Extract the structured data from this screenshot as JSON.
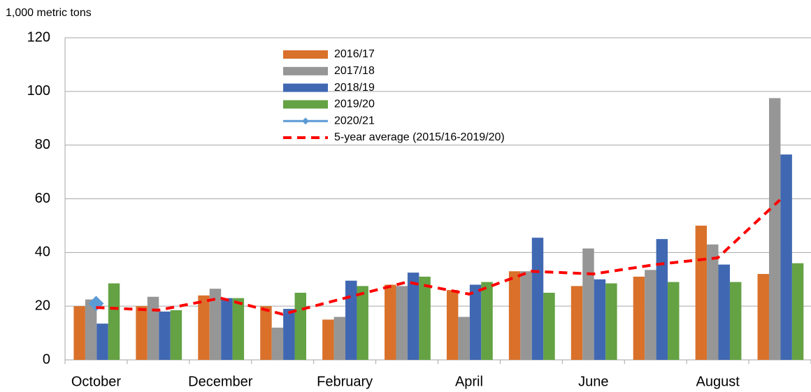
{
  "chart_data": {
    "type": "bar",
    "y_axis_label": "1,000 metric tons",
    "categories": [
      "October",
      null,
      "December",
      null,
      "February",
      null,
      "April",
      null,
      "June",
      null,
      "August",
      null
    ],
    "ylim": [
      0,
      120
    ],
    "yticks": [
      0,
      20,
      40,
      60,
      80,
      100,
      120
    ],
    "grid": true,
    "legend": "upper-center",
    "series": [
      {
        "name": "2016/17",
        "color": "#d9712b",
        "values": [
          20,
          20,
          24,
          20,
          15,
          28,
          26,
          33,
          27.5,
          31,
          50,
          32
        ]
      },
      {
        "name": "2017/18",
        "color": "#969696",
        "values": [
          22.5,
          23.5,
          26.5,
          12,
          16,
          27.5,
          16,
          33,
          41.5,
          33.5,
          43,
          97.5
        ]
      },
      {
        "name": "2018/19",
        "color": "#4068b2",
        "values": [
          13.5,
          18,
          23,
          19,
          29.5,
          32.5,
          28,
          45.5,
          30,
          45,
          35.5,
          76.5
        ]
      },
      {
        "name": "2019/20",
        "color": "#64a244",
        "values": [
          28.5,
          18.5,
          23,
          25,
          27.5,
          31,
          29,
          25,
          28.5,
          29,
          29,
          36
        ]
      },
      {
        "name": "2020/21",
        "color": "#5b9bd5",
        "type": "line",
        "marker": "diamond",
        "values": [
          21,
          null,
          null,
          null,
          null,
          null,
          null,
          null,
          null,
          null,
          null,
          null
        ]
      },
      {
        "name": "5-year average (2015/16-2019/20)",
        "color": "#ff0000",
        "type": "line",
        "dashed": true,
        "values": [
          19.5,
          18.5,
          23,
          17,
          23,
          29,
          24.5,
          33,
          32,
          35.5,
          38,
          59.6
        ]
      }
    ]
  }
}
